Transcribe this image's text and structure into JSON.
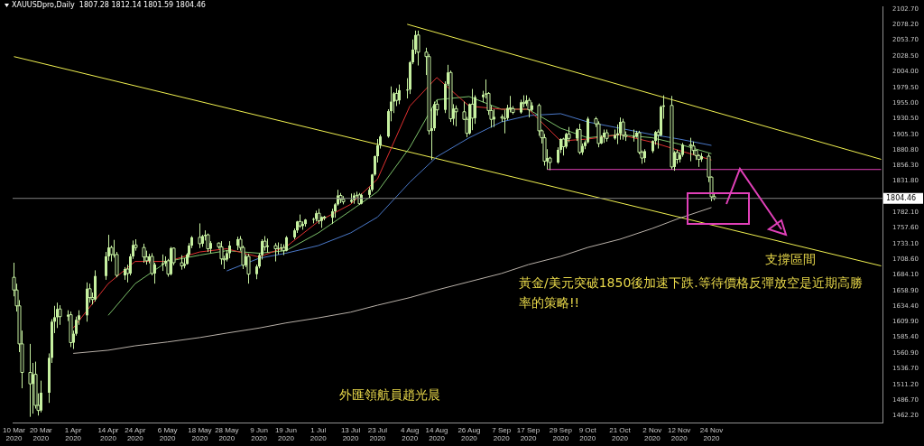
{
  "chart_data": {
    "type": "candlestick",
    "title": "XAUUSDpro,Daily  1807.28 1812.14 1801.59 1804.46",
    "color": "#c6f0a0",
    "x": [
      "2020-03-10",
      "2020-03-11",
      "2020-03-12",
      "2020-03-13",
      "2020-03-16",
      "2020-03-17",
      "2020-03-18",
      "2020-03-19",
      "2020-03-20",
      "2020-03-23",
      "2020-03-24",
      "2020-03-25",
      "2020-03-26",
      "2020-03-27",
      "2020-03-30",
      "2020-03-31",
      "2020-04-01",
      "2020-04-02",
      "2020-04-03",
      "2020-04-06",
      "2020-04-07",
      "2020-04-08",
      "2020-04-09",
      "2020-04-13",
      "2020-04-14",
      "2020-04-15",
      "2020-04-16",
      "2020-04-17",
      "2020-04-20",
      "2020-04-21",
      "2020-04-22",
      "2020-04-23",
      "2020-04-24",
      "2020-04-27",
      "2020-04-28",
      "2020-04-29",
      "2020-04-30",
      "2020-05-01",
      "2020-05-04",
      "2020-05-05",
      "2020-05-06",
      "2020-05-07",
      "2020-05-08",
      "2020-05-11",
      "2020-05-12",
      "2020-05-13",
      "2020-05-14",
      "2020-05-15",
      "2020-05-18",
      "2020-05-19",
      "2020-05-20",
      "2020-05-21",
      "2020-05-22",
      "2020-05-25",
      "2020-05-26",
      "2020-05-27",
      "2020-05-28",
      "2020-05-29",
      "2020-06-01",
      "2020-06-02",
      "2020-06-03",
      "2020-06-04",
      "2020-06-05",
      "2020-06-08",
      "2020-06-09",
      "2020-06-10",
      "2020-06-11",
      "2020-06-12",
      "2020-06-15",
      "2020-06-16",
      "2020-06-17",
      "2020-06-18",
      "2020-06-19",
      "2020-06-22",
      "2020-06-23",
      "2020-06-24",
      "2020-06-25",
      "2020-06-26",
      "2020-06-29",
      "2020-06-30",
      "2020-07-01",
      "2020-07-02",
      "2020-07-03",
      "2020-07-06",
      "2020-07-07",
      "2020-07-08",
      "2020-07-09",
      "2020-07-10",
      "2020-07-13",
      "2020-07-14",
      "2020-07-15",
      "2020-07-16",
      "2020-07-17",
      "2020-07-20",
      "2020-07-21",
      "2020-07-22",
      "2020-07-23",
      "2020-07-24",
      "2020-07-27",
      "2020-07-28",
      "2020-07-29",
      "2020-07-30",
      "2020-07-31",
      "2020-08-03",
      "2020-08-04",
      "2020-08-05",
      "2020-08-06",
      "2020-08-07",
      "2020-08-10",
      "2020-08-11",
      "2020-08-12",
      "2020-08-13",
      "2020-08-14",
      "2020-08-17",
      "2020-08-18",
      "2020-08-19",
      "2020-08-20",
      "2020-08-21",
      "2020-08-24",
      "2020-08-25",
      "2020-08-26",
      "2020-08-27",
      "2020-08-28",
      "2020-08-31",
      "2020-09-01",
      "2020-09-02",
      "2020-09-03",
      "2020-09-04",
      "2020-09-07",
      "2020-09-08",
      "2020-09-09",
      "2020-09-10",
      "2020-09-11",
      "2020-09-14",
      "2020-09-15",
      "2020-09-16",
      "2020-09-17",
      "2020-09-18",
      "2020-09-21",
      "2020-09-22",
      "2020-09-23",
      "2020-09-24",
      "2020-09-25",
      "2020-09-28",
      "2020-09-29",
      "2020-09-30",
      "2020-10-01",
      "2020-10-02",
      "2020-10-05",
      "2020-10-06",
      "2020-10-07",
      "2020-10-08",
      "2020-10-09",
      "2020-10-12",
      "2020-10-13",
      "2020-10-14",
      "2020-10-15",
      "2020-10-16",
      "2020-10-19",
      "2020-10-20",
      "2020-10-21",
      "2020-10-22",
      "2020-10-23",
      "2020-10-26",
      "2020-10-27",
      "2020-10-28",
      "2020-10-29",
      "2020-10-30",
      "2020-11-02",
      "2020-11-03",
      "2020-11-04",
      "2020-11-05",
      "2020-11-06",
      "2020-11-09",
      "2020-11-10",
      "2020-11-11",
      "2020-11-12",
      "2020-11-13",
      "2020-11-16",
      "2020-11-17",
      "2020-11-18",
      "2020-11-19",
      "2020-11-20",
      "2020-11-23",
      "2020-11-24",
      "2020-11-25"
    ],
    "ohlc": [
      [
        1680,
        1703,
        1650,
        1660
      ],
      [
        1660,
        1670,
        1626,
        1635
      ],
      [
        1635,
        1644,
        1562,
        1575
      ],
      [
        1575,
        1596,
        1505,
        1530
      ],
      [
        1530,
        1575,
        1460,
        1512
      ],
      [
        1512,
        1545,
        1465,
        1527
      ],
      [
        1527,
        1547,
        1473,
        1478
      ],
      [
        1478,
        1497,
        1462,
        1470
      ],
      [
        1470,
        1517,
        1467,
        1498
      ],
      [
        1498,
        1560,
        1482,
        1553
      ],
      [
        1553,
        1614,
        1545,
        1610
      ],
      [
        1610,
        1635,
        1592,
        1617
      ],
      [
        1617,
        1640,
        1600,
        1630
      ],
      [
        1630,
        1636,
        1605,
        1618
      ],
      [
        1618,
        1628,
        1611,
        1621
      ],
      [
        1621,
        1626,
        1570,
        1577
      ],
      [
        1577,
        1596,
        1567,
        1591
      ],
      [
        1591,
        1618,
        1588,
        1613
      ],
      [
        1613,
        1628,
        1605,
        1620
      ],
      [
        1620,
        1672,
        1610,
        1662
      ],
      [
        1662,
        1670,
        1640,
        1648
      ],
      [
        1648,
        1656,
        1637,
        1645
      ],
      [
        1645,
        1691,
        1642,
        1682
      ],
      [
        1682,
        1720,
        1676,
        1713
      ],
      [
        1713,
        1747,
        1706,
        1727
      ],
      [
        1727,
        1730,
        1705,
        1716
      ],
      [
        1716,
        1739,
        1711,
        1716
      ],
      [
        1716,
        1720,
        1680,
        1683
      ],
      [
        1683,
        1696,
        1676,
        1693
      ],
      [
        1693,
        1700,
        1672,
        1686
      ],
      [
        1686,
        1717,
        1683,
        1713
      ],
      [
        1713,
        1738,
        1709,
        1731
      ],
      [
        1731,
        1740,
        1722,
        1727
      ],
      [
        1727,
        1733,
        1703,
        1712
      ],
      [
        1712,
        1722,
        1700,
        1706
      ],
      [
        1706,
        1717,
        1702,
        1713
      ],
      [
        1713,
        1718,
        1683,
        1686
      ],
      [
        1686,
        1703,
        1670,
        1700
      ],
      [
        1700,
        1716,
        1690,
        1702
      ],
      [
        1702,
        1713,
        1697,
        1706
      ],
      [
        1706,
        1709,
        1681,
        1685
      ],
      [
        1685,
        1728,
        1683,
        1726
      ],
      [
        1726,
        1727,
        1699,
        1703
      ],
      [
        1703,
        1715,
        1692,
        1698
      ],
      [
        1698,
        1710,
        1694,
        1701
      ],
      [
        1701,
        1718,
        1700,
        1716
      ],
      [
        1716,
        1734,
        1712,
        1730
      ],
      [
        1730,
        1745,
        1726,
        1743
      ],
      [
        1743,
        1765,
        1726,
        1733
      ],
      [
        1733,
        1747,
        1728,
        1745
      ],
      [
        1745,
        1754,
        1738,
        1747
      ],
      [
        1747,
        1749,
        1720,
        1725
      ],
      [
        1725,
        1737,
        1718,
        1734
      ],
      [
        1734,
        1735,
        1725,
        1728
      ],
      [
        1728,
        1737,
        1700,
        1709
      ],
      [
        1709,
        1714,
        1693,
        1708
      ],
      [
        1708,
        1723,
        1705,
        1718
      ],
      [
        1718,
        1737,
        1710,
        1730
      ],
      [
        1730,
        1744,
        1723,
        1740
      ],
      [
        1740,
        1745,
        1722,
        1727
      ],
      [
        1727,
        1730,
        1693,
        1699
      ],
      [
        1699,
        1716,
        1696,
        1713
      ],
      [
        1713,
        1717,
        1670,
        1685
      ],
      [
        1685,
        1700,
        1677,
        1697
      ],
      [
        1697,
        1718,
        1694,
        1715
      ],
      [
        1715,
        1740,
        1708,
        1737
      ],
      [
        1737,
        1745,
        1722,
        1728
      ],
      [
        1728,
        1741,
        1719,
        1730
      ],
      [
        1730,
        1734,
        1705,
        1725
      ],
      [
        1725,
        1735,
        1716,
        1726
      ],
      [
        1726,
        1733,
        1721,
        1727
      ],
      [
        1727,
        1732,
        1715,
        1722
      ],
      [
        1722,
        1745,
        1721,
        1743
      ],
      [
        1743,
        1757,
        1740,
        1754
      ],
      [
        1754,
        1769,
        1750,
        1768
      ],
      [
        1768,
        1779,
        1758,
        1761
      ],
      [
        1761,
        1768,
        1755,
        1764
      ],
      [
        1764,
        1772,
        1760,
        1771
      ],
      [
        1771,
        1774,
        1765,
        1772
      ],
      [
        1772,
        1785,
        1768,
        1781
      ],
      [
        1781,
        1788,
        1764,
        1769
      ],
      [
        1769,
        1776,
        1758,
        1775
      ],
      [
        1775,
        1777,
        1770,
        1774
      ],
      [
        1774,
        1788,
        1764,
        1784
      ],
      [
        1784,
        1797,
        1774,
        1795
      ],
      [
        1795,
        1818,
        1793,
        1809
      ],
      [
        1809,
        1813,
        1797,
        1803
      ],
      [
        1803,
        1808,
        1795,
        1799
      ],
      [
        1799,
        1812,
        1797,
        1802
      ],
      [
        1802,
        1813,
        1796,
        1809
      ],
      [
        1809,
        1815,
        1806,
        1810
      ],
      [
        1810,
        1813,
        1794,
        1796
      ],
      [
        1796,
        1812,
        1795,
        1810
      ],
      [
        1810,
        1822,
        1805,
        1818
      ],
      [
        1818,
        1843,
        1815,
        1842
      ],
      [
        1842,
        1872,
        1840,
        1871
      ],
      [
        1871,
        1898,
        1861,
        1888
      ],
      [
        1888,
        1905,
        1883,
        1902
      ],
      [
        1902,
        1945,
        1900,
        1942
      ],
      [
        1942,
        1981,
        1926,
        1957
      ],
      [
        1957,
        1972,
        1939,
        1970
      ],
      [
        1970,
        1978,
        1950,
        1959
      ],
      [
        1959,
        1984,
        1953,
        1975
      ],
      [
        1975,
        1994,
        1962,
        1976
      ],
      [
        1976,
        2021,
        1969,
        2019
      ],
      [
        2019,
        2055,
        2016,
        2039
      ],
      [
        2039,
        2069,
        2032,
        2062
      ],
      [
        2062,
        2069,
        2014,
        2035
      ],
      [
        2035,
        2042,
        1999,
        2028
      ],
      [
        2028,
        2032,
        1905,
        1911
      ],
      [
        1911,
        1947,
        1865,
        1915
      ],
      [
        1915,
        1957,
        1911,
        1953
      ],
      [
        1953,
        1959,
        1935,
        1944
      ],
      [
        1944,
        1989,
        1939,
        1985
      ],
      [
        1985,
        2015,
        1982,
        2003
      ],
      [
        2003,
        2006,
        1925,
        1930
      ],
      [
        1930,
        1953,
        1920,
        1946
      ],
      [
        1946,
        1951,
        1918,
        1941
      ],
      [
        1941,
        1957,
        1928,
        1929
      ],
      [
        1929,
        1933,
        1901,
        1907
      ],
      [
        1907,
        1954,
        1905,
        1953
      ],
      [
        1953,
        1977,
        1912,
        1931
      ],
      [
        1931,
        1967,
        1922,
        1964
      ],
      [
        1964,
        1974,
        1956,
        1968
      ],
      [
        1968,
        1992,
        1962,
        1970
      ],
      [
        1970,
        1972,
        1936,
        1943
      ],
      [
        1943,
        1951,
        1916,
        1929
      ],
      [
        1929,
        1945,
        1917,
        1933
      ],
      [
        1933,
        1937,
        1925,
        1931
      ],
      [
        1931,
        1944,
        1907,
        1931
      ],
      [
        1931,
        1952,
        1928,
        1947
      ],
      [
        1947,
        1966,
        1940,
        1946
      ],
      [
        1946,
        1950,
        1937,
        1940
      ],
      [
        1940,
        1960,
        1938,
        1956
      ],
      [
        1956,
        1967,
        1948,
        1954
      ],
      [
        1954,
        1967,
        1950,
        1959
      ],
      [
        1959,
        1963,
        1932,
        1944
      ],
      [
        1944,
        1956,
        1942,
        1951
      ],
      [
        1951,
        1954,
        1903,
        1911
      ],
      [
        1911,
        1913,
        1891,
        1900
      ],
      [
        1900,
        1906,
        1856,
        1863
      ],
      [
        1863,
        1882,
        1850,
        1868
      ],
      [
        1868,
        1870,
        1849,
        1861
      ],
      [
        1861,
        1885,
        1859,
        1881
      ],
      [
        1881,
        1899,
        1876,
        1898
      ],
      [
        1898,
        1900,
        1872,
        1886
      ],
      [
        1886,
        1908,
        1883,
        1906
      ],
      [
        1906,
        1917,
        1893,
        1899
      ],
      [
        1899,
        1915,
        1895,
        1913
      ],
      [
        1913,
        1922,
        1874,
        1877
      ],
      [
        1877,
        1891,
        1873,
        1887
      ],
      [
        1887,
        1896,
        1882,
        1893
      ],
      [
        1893,
        1933,
        1891,
        1930
      ],
      [
        1930,
        1933,
        1917,
        1922
      ],
      [
        1922,
        1926,
        1885,
        1891
      ],
      [
        1891,
        1904,
        1890,
        1901
      ],
      [
        1901,
        1913,
        1892,
        1908
      ],
      [
        1908,
        1913,
        1894,
        1899
      ],
      [
        1899,
        1913,
        1897,
        1904
      ],
      [
        1904,
        1921,
        1890,
        1907
      ],
      [
        1907,
        1932,
        1897,
        1925
      ],
      [
        1925,
        1930,
        1897,
        1904
      ],
      [
        1904,
        1910,
        1895,
        1902
      ],
      [
        1902,
        1913,
        1894,
        1902
      ],
      [
        1902,
        1911,
        1900,
        1908
      ],
      [
        1908,
        1911,
        1874,
        1877
      ],
      [
        1877,
        1880,
        1859,
        1868
      ],
      [
        1868,
        1882,
        1861,
        1879
      ],
      [
        1879,
        1896,
        1876,
        1895
      ],
      [
        1895,
        1911,
        1889,
        1909
      ],
      [
        1909,
        1913,
        1883,
        1904
      ],
      [
        1904,
        1951,
        1902,
        1949
      ],
      [
        1949,
        1967,
        1930,
        1951
      ],
      [
        1951,
        1966,
        1850,
        1854
      ],
      [
        1854,
        1879,
        1848,
        1877
      ],
      [
        1877,
        1881,
        1859,
        1866
      ],
      [
        1866,
        1877,
        1861,
        1873
      ],
      [
        1873,
        1892,
        1870,
        1889
      ],
      [
        1889,
        1900,
        1863,
        1887
      ],
      [
        1887,
        1894,
        1873,
        1880
      ],
      [
        1880,
        1881,
        1865,
        1872
      ],
      [
        1872,
        1874,
        1854,
        1866
      ],
      [
        1866,
        1876,
        1862,
        1871
      ],
      [
        1871,
        1875,
        1830,
        1838
      ],
      [
        1838,
        1839,
        1800,
        1807
      ],
      [
        1807.28,
        1812.14,
        1801.59,
        1804.46
      ]
    ],
    "series": [
      {
        "type": "line",
        "color": "#e03030",
        "x": [
          "2020-04-01",
          "2020-04-14",
          "2020-04-24",
          "2020-05-06",
          "2020-05-18",
          "2020-05-28",
          "2020-06-09",
          "2020-06-19",
          "2020-07-01",
          "2020-07-13",
          "2020-07-23",
          "2020-08-04",
          "2020-08-14",
          "2020-08-26",
          "2020-09-07",
          "2020-09-17",
          "2020-09-29",
          "2020-10-09",
          "2020-10-21",
          "2020-11-02",
          "2020-11-12",
          "2020-11-24"
        ],
        "values": [
          1600,
          1670,
          1705,
          1705,
          1720,
          1725,
          1712,
          1728,
          1768,
          1795,
          1835,
          1950,
          1995,
          1950,
          1945,
          1945,
          1895,
          1898,
          1905,
          1893,
          1880,
          1865
        ]
      },
      {
        "type": "line",
        "color": "#7cc06a",
        "x": [
          "2020-04-14",
          "2020-04-24",
          "2020-05-06",
          "2020-05-18",
          "2020-05-28",
          "2020-06-09",
          "2020-06-19",
          "2020-07-01",
          "2020-07-13",
          "2020-07-23",
          "2020-08-04",
          "2020-08-14",
          "2020-08-26",
          "2020-09-07",
          "2020-09-17",
          "2020-09-29",
          "2020-10-09",
          "2020-10-21",
          "2020-11-02",
          "2020-11-12",
          "2020-11-24"
        ],
        "values": [
          1620,
          1670,
          1705,
          1715,
          1722,
          1718,
          1722,
          1750,
          1785,
          1815,
          1885,
          1960,
          1965,
          1945,
          1945,
          1915,
          1900,
          1905,
          1900,
          1890,
          1875
        ]
      },
      {
        "type": "line",
        "color": "#4a78c8",
        "x": [
          "2020-05-28",
          "2020-06-09",
          "2020-06-19",
          "2020-07-01",
          "2020-07-13",
          "2020-07-23",
          "2020-08-04",
          "2020-08-14",
          "2020-08-26",
          "2020-09-07",
          "2020-09-17",
          "2020-09-29",
          "2020-10-09",
          "2020-10-21",
          "2020-11-02",
          "2020-11-12",
          "2020-11-24"
        ],
        "values": [
          1690,
          1710,
          1718,
          1730,
          1750,
          1775,
          1830,
          1870,
          1900,
          1925,
          1935,
          1938,
          1925,
          1915,
          1905,
          1898,
          1888
        ]
      },
      {
        "type": "line",
        "color": "#b8b0a8",
        "x": [
          "2020-04-01",
          "2020-04-14",
          "2020-04-24",
          "2020-05-06",
          "2020-05-18",
          "2020-05-28",
          "2020-06-09",
          "2020-06-19",
          "2020-07-01",
          "2020-07-13",
          "2020-07-23",
          "2020-08-04",
          "2020-08-14",
          "2020-08-26",
          "2020-09-07",
          "2020-09-17",
          "2020-09-29",
          "2020-10-09",
          "2020-10-21",
          "2020-11-02",
          "2020-11-12",
          "2020-11-24"
        ],
        "values": [
          1560,
          1565,
          1572,
          1578,
          1585,
          1592,
          1600,
          1608,
          1616,
          1625,
          1636,
          1648,
          1660,
          1673,
          1686,
          1700,
          1713,
          1727,
          1740,
          1757,
          1773,
          1790
        ]
      },
      {
        "type": "line",
        "color": "#f0f050",
        "x": [
          "2020-03-10",
          "2021-01-26"
        ],
        "values": [
          2028,
          1698
        ]
      },
      {
        "type": "line",
        "color": "#f0f050",
        "x": [
          "2020-08-03",
          "2021-01-26"
        ],
        "values": [
          2079,
          1866
        ]
      },
      {
        "type": "line",
        "color": "#e040b8",
        "x": [
          "2020-09-24",
          "2021-01-26"
        ],
        "values": [
          1850,
          1850
        ]
      }
    ],
    "marker": "none",
    "xlim": [
      "2020-03-09T12:00",
      "2021-01-26T12:00"
    ],
    "xticks": [
      {
        "value": "2020-03-10",
        "label": "10 Mar 2020"
      },
      {
        "value": "2020-03-20",
        "label": "20 Mar 2020"
      },
      {
        "value": "2020-04-01",
        "label": "1 Apr 2020"
      },
      {
        "value": "2020-04-14",
        "label": "14 Apr 2020"
      },
      {
        "value": "2020-04-24",
        "label": "24 Apr 2020"
      },
      {
        "value": "2020-05-06",
        "label": "6 May 2020"
      },
      {
        "value": "2020-05-18",
        "label": "18 May 2020"
      },
      {
        "value": "2020-05-28",
        "label": "28 May 2020"
      },
      {
        "value": "2020-06-09",
        "label": "9 Jun 2020"
      },
      {
        "value": "2020-06-19",
        "label": "19 Jun 2020"
      },
      {
        "value": "2020-07-01",
        "label": "1 Jul 2020"
      },
      {
        "value": "2020-07-13",
        "label": "13 Jul 2020"
      },
      {
        "value": "2020-07-23",
        "label": "23 Jul 2020"
      },
      {
        "value": "2020-08-04",
        "label": "4 Aug 2020"
      },
      {
        "value": "2020-08-14",
        "label": "14 Aug 2020"
      },
      {
        "value": "2020-08-26",
        "label": "26 Aug 2020"
      },
      {
        "value": "2020-09-07",
        "label": "7 Sep 2020"
      },
      {
        "value": "2020-09-17",
        "label": "17 Sep 2020"
      },
      {
        "value": "2020-09-29",
        "label": "29 Sep 2020"
      },
      {
        "value": "2020-10-09",
        "label": "9 Oct 2020"
      },
      {
        "value": "2020-10-21",
        "label": "21 Oct 2020"
      },
      {
        "value": "2020-11-02",
        "label": "2 Nov 2020"
      },
      {
        "value": "2020-11-12",
        "label": "12 Nov 2020"
      },
      {
        "value": "2020-11-24",
        "label": "24 Nov 2020"
      }
    ],
    "ylim": [
      1451,
      2107
    ],
    "yticks": [
      {
        "value": 2102.7,
        "label": "2102.70"
      },
      {
        "value": 2078.2,
        "label": "2078.20"
      },
      {
        "value": 2053.7,
        "label": "2053.70"
      },
      {
        "value": 2028.5,
        "label": "2028.50"
      },
      {
        "value": 2004,
        "label": "2004.00"
      },
      {
        "value": 1979.5,
        "label": "1979.50"
      },
      {
        "value": 1955,
        "label": "1955.00"
      },
      {
        "value": 1930.5,
        "label": "1930.50"
      },
      {
        "value": 1905.3,
        "label": "1905.30"
      },
      {
        "value": 1880.8,
        "label": "1880.80"
      },
      {
        "value": 1856.3,
        "label": "1856.30"
      },
      {
        "value": 1831.8,
        "label": "1831.80"
      },
      {
        "value": 1782.1,
        "label": "1782.10"
      },
      {
        "value": 1757.6,
        "label": "1757.60"
      },
      {
        "value": 1733.1,
        "label": "1733.10"
      },
      {
        "value": 1708.6,
        "label": "1708.60"
      },
      {
        "value": 1684.1,
        "label": "1684.10"
      },
      {
        "value": 1658.9,
        "label": "1658.90"
      },
      {
        "value": 1634.4,
        "label": "1634.40"
      },
      {
        "value": 1609.9,
        "label": "1609.90"
      },
      {
        "value": 1585.4,
        "label": "1585.40"
      },
      {
        "value": 1560.9,
        "label": "1560.90"
      },
      {
        "value": 1536.7,
        "label": "1536.70"
      },
      {
        "value": 1511.2,
        "label": "1511.20"
      },
      {
        "value": 1486.7,
        "label": "1486.70"
      },
      {
        "value": 1462.2,
        "label": "1462.20"
      }
    ],
    "ref_lines": [
      {
        "axis": "y",
        "value": 1804.46,
        "label": "1804.46",
        "color": "#808080"
      }
    ],
    "annotations": [
      "支撐區間",
      "黃金/美元突破1850後加速下跌.等待價格反彈放空是近期高勝率的策略!!",
      "外匯領航員趙光晨"
    ],
    "grid": false,
    "legend": false
  }
}
